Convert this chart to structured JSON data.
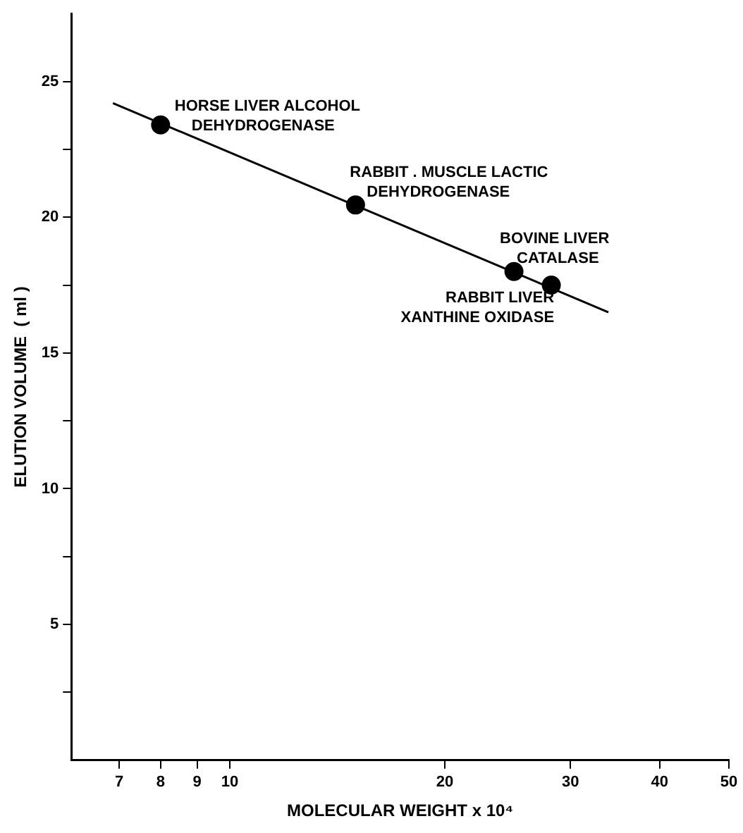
{
  "chart_data": {
    "type": "scatter",
    "xlabel": "MOLECULAR WEIGHT x 10⁴",
    "ylabel": "ELUTION VOLUME  ( ml )",
    "log": "x",
    "xlim": [
      6,
      50
    ],
    "xticks": [
      7,
      8,
      9,
      10,
      20,
      30,
      40,
      50
    ],
    "ylim": [
      0,
      27.5
    ],
    "yticks": [
      {
        "value": 2.5,
        "label": null
      },
      5,
      {
        "value": 7.5,
        "label": null
      },
      10,
      {
        "value": 12.5,
        "label": null
      },
      15,
      {
        "value": 17.5,
        "label": null
      },
      20,
      {
        "value": 22.5,
        "label": null
      },
      25
    ],
    "grid": false,
    "legend": false,
    "series": [
      {
        "type": "scatter",
        "color": "#000000",
        "marker": "circle",
        "x": [
          8,
          15,
          25,
          28.2
        ],
        "values": [
          23.4,
          20.45,
          18.0,
          17.5
        ]
      },
      {
        "type": "line",
        "color": "#000000",
        "marker": "none",
        "line_style": "solid",
        "x": [
          6.86,
          33.9
        ],
        "values": [
          24.2,
          16.5
        ]
      }
    ],
    "annotations": [
      {
        "text": "HORSE LIVER ALCOHOL\nDEHYDROGENASE",
        "x": 8,
        "y": 23.4
      },
      {
        "text": "RABBIT . MUSCLE LACTIC\nDEHYDROGENASE",
        "x": 15,
        "y": 20.45
      },
      {
        "text": "BOVINE LIVER\nCATALASE",
        "x": 25,
        "y": 18.0
      },
      {
        "text": "RABBIT LIVER\nXANTHINE OXIDASE",
        "x": 28.2,
        "y": 17.5
      }
    ]
  }
}
